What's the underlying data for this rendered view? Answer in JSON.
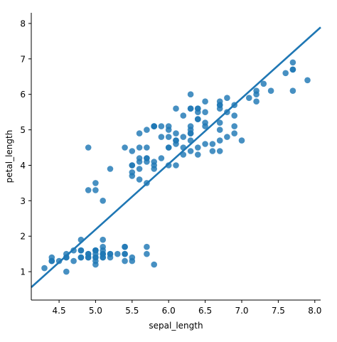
{
  "chart_data": {
    "type": "scatter",
    "title": "",
    "xlabel": "sepal_length",
    "ylabel": "petal_length",
    "xlim": [
      4.12,
      8.08
    ],
    "ylim": [
      0.2,
      8.3
    ],
    "xticks": [
      "4.5",
      "5.0",
      "5.5",
      "6.0",
      "6.5",
      "7.0",
      "7.5",
      "8.0"
    ],
    "yticks": [
      "1",
      "2",
      "3",
      "4",
      "5",
      "6",
      "7",
      "8"
    ],
    "grid": false,
    "legend": "none",
    "colors": {
      "points": "#1f77b4",
      "line": "#1f77b4"
    },
    "regression_line": {
      "x": [
        4.12,
        8.08
      ],
      "y": [
        0.56,
        7.89
      ]
    },
    "points": [
      {
        "x": 5.1,
        "y": 1.4
      },
      {
        "x": 4.9,
        "y": 1.4
      },
      {
        "x": 4.7,
        "y": 1.3
      },
      {
        "x": 4.6,
        "y": 1.5
      },
      {
        "x": 5.0,
        "y": 1.4
      },
      {
        "x": 5.4,
        "y": 1.7
      },
      {
        "x": 4.6,
        "y": 1.4
      },
      {
        "x": 5.0,
        "y": 1.5
      },
      {
        "x": 4.4,
        "y": 1.4
      },
      {
        "x": 4.9,
        "y": 1.5
      },
      {
        "x": 5.4,
        "y": 1.5
      },
      {
        "x": 4.8,
        "y": 1.6
      },
      {
        "x": 4.8,
        "y": 1.4
      },
      {
        "x": 4.3,
        "y": 1.1
      },
      {
        "x": 5.8,
        "y": 1.2
      },
      {
        "x": 5.7,
        "y": 1.5
      },
      {
        "x": 5.4,
        "y": 1.3
      },
      {
        "x": 5.1,
        "y": 1.4
      },
      {
        "x": 5.7,
        "y": 1.7
      },
      {
        "x": 5.1,
        "y": 1.5
      },
      {
        "x": 5.4,
        "y": 1.7
      },
      {
        "x": 5.1,
        "y": 1.5
      },
      {
        "x": 4.6,
        "y": 1.0
      },
      {
        "x": 5.1,
        "y": 1.7
      },
      {
        "x": 4.8,
        "y": 1.9
      },
      {
        "x": 5.0,
        "y": 1.6
      },
      {
        "x": 5.0,
        "y": 1.6
      },
      {
        "x": 5.2,
        "y": 1.5
      },
      {
        "x": 5.2,
        "y": 1.4
      },
      {
        "x": 4.7,
        "y": 1.6
      },
      {
        "x": 4.8,
        "y": 1.6
      },
      {
        "x": 5.4,
        "y": 1.5
      },
      {
        "x": 5.2,
        "y": 1.5
      },
      {
        "x": 5.5,
        "y": 1.4
      },
      {
        "x": 4.9,
        "y": 1.5
      },
      {
        "x": 5.0,
        "y": 1.2
      },
      {
        "x": 5.5,
        "y": 1.3
      },
      {
        "x": 4.9,
        "y": 1.4
      },
      {
        "x": 4.4,
        "y": 1.3
      },
      {
        "x": 5.1,
        "y": 1.5
      },
      {
        "x": 5.0,
        "y": 1.3
      },
      {
        "x": 4.5,
        "y": 1.3
      },
      {
        "x": 4.4,
        "y": 1.3
      },
      {
        "x": 5.0,
        "y": 1.6
      },
      {
        "x": 5.1,
        "y": 1.9
      },
      {
        "x": 4.8,
        "y": 1.4
      },
      {
        "x": 5.1,
        "y": 1.6
      },
      {
        "x": 4.6,
        "y": 1.4
      },
      {
        "x": 5.3,
        "y": 1.5
      },
      {
        "x": 5.0,
        "y": 1.4
      },
      {
        "x": 7.0,
        "y": 4.7
      },
      {
        "x": 6.4,
        "y": 4.5
      },
      {
        "x": 6.9,
        "y": 4.9
      },
      {
        "x": 5.5,
        "y": 4.0
      },
      {
        "x": 6.5,
        "y": 4.6
      },
      {
        "x": 5.7,
        "y": 4.5
      },
      {
        "x": 6.3,
        "y": 4.7
      },
      {
        "x": 4.9,
        "y": 3.3
      },
      {
        "x": 6.6,
        "y": 4.6
      },
      {
        "x": 5.2,
        "y": 3.9
      },
      {
        "x": 5.0,
        "y": 3.5
      },
      {
        "x": 5.9,
        "y": 4.2
      },
      {
        "x": 6.0,
        "y": 4.0
      },
      {
        "x": 6.1,
        "y": 4.7
      },
      {
        "x": 5.6,
        "y": 3.6
      },
      {
        "x": 6.7,
        "y": 4.4
      },
      {
        "x": 5.6,
        "y": 4.5
      },
      {
        "x": 5.8,
        "y": 4.1
      },
      {
        "x": 6.2,
        "y": 4.5
      },
      {
        "x": 5.6,
        "y": 3.9
      },
      {
        "x": 5.9,
        "y": 4.8
      },
      {
        "x": 6.1,
        "y": 4.0
      },
      {
        "x": 6.3,
        "y": 4.9
      },
      {
        "x": 6.1,
        "y": 4.7
      },
      {
        "x": 6.4,
        "y": 4.3
      },
      {
        "x": 6.6,
        "y": 4.4
      },
      {
        "x": 6.8,
        "y": 4.8
      },
      {
        "x": 6.7,
        "y": 5.0
      },
      {
        "x": 6.0,
        "y": 4.5
      },
      {
        "x": 5.7,
        "y": 3.5
      },
      {
        "x": 5.5,
        "y": 3.8
      },
      {
        "x": 5.5,
        "y": 3.7
      },
      {
        "x": 5.8,
        "y": 3.9
      },
      {
        "x": 6.0,
        "y": 5.1
      },
      {
        "x": 5.4,
        "y": 4.5
      },
      {
        "x": 6.0,
        "y": 4.5
      },
      {
        "x": 6.7,
        "y": 4.7
      },
      {
        "x": 6.3,
        "y": 4.4
      },
      {
        "x": 5.6,
        "y": 4.1
      },
      {
        "x": 5.5,
        "y": 4.0
      },
      {
        "x": 5.5,
        "y": 4.4
      },
      {
        "x": 6.1,
        "y": 4.6
      },
      {
        "x": 5.8,
        "y": 4.0
      },
      {
        "x": 5.0,
        "y": 3.3
      },
      {
        "x": 5.6,
        "y": 4.2
      },
      {
        "x": 5.7,
        "y": 4.2
      },
      {
        "x": 5.7,
        "y": 4.2
      },
      {
        "x": 6.2,
        "y": 4.3
      },
      {
        "x": 5.1,
        "y": 3.0
      },
      {
        "x": 5.7,
        "y": 4.1
      },
      {
        "x": 6.3,
        "y": 6.0
      },
      {
        "x": 5.8,
        "y": 5.1
      },
      {
        "x": 7.1,
        "y": 5.9
      },
      {
        "x": 6.3,
        "y": 5.6
      },
      {
        "x": 6.5,
        "y": 5.8
      },
      {
        "x": 7.6,
        "y": 6.6
      },
      {
        "x": 4.9,
        "y": 4.5
      },
      {
        "x": 7.3,
        "y": 6.3
      },
      {
        "x": 6.7,
        "y": 5.8
      },
      {
        "x": 7.2,
        "y": 6.1
      },
      {
        "x": 6.5,
        "y": 5.1
      },
      {
        "x": 6.4,
        "y": 5.3
      },
      {
        "x": 6.8,
        "y": 5.5
      },
      {
        "x": 5.7,
        "y": 5.0
      },
      {
        "x": 5.8,
        "y": 5.1
      },
      {
        "x": 6.4,
        "y": 5.3
      },
      {
        "x": 6.5,
        "y": 5.5
      },
      {
        "x": 7.7,
        "y": 6.7
      },
      {
        "x": 7.7,
        "y": 6.9
      },
      {
        "x": 6.0,
        "y": 5.0
      },
      {
        "x": 6.9,
        "y": 5.7
      },
      {
        "x": 5.6,
        "y": 4.9
      },
      {
        "x": 7.7,
        "y": 6.7
      },
      {
        "x": 6.3,
        "y": 4.9
      },
      {
        "x": 6.7,
        "y": 5.7
      },
      {
        "x": 7.2,
        "y": 6.0
      },
      {
        "x": 6.2,
        "y": 4.8
      },
      {
        "x": 6.1,
        "y": 4.9
      },
      {
        "x": 6.4,
        "y": 5.6
      },
      {
        "x": 7.2,
        "y": 5.8
      },
      {
        "x": 7.4,
        "y": 6.1
      },
      {
        "x": 7.9,
        "y": 6.4
      },
      {
        "x": 6.4,
        "y": 5.6
      },
      {
        "x": 6.3,
        "y": 5.1
      },
      {
        "x": 6.1,
        "y": 5.6
      },
      {
        "x": 7.7,
        "y": 6.1
      },
      {
        "x": 6.3,
        "y": 5.6
      },
      {
        "x": 6.4,
        "y": 5.5
      },
      {
        "x": 6.0,
        "y": 4.8
      },
      {
        "x": 6.9,
        "y": 5.4
      },
      {
        "x": 6.7,
        "y": 5.6
      },
      {
        "x": 6.9,
        "y": 5.1
      },
      {
        "x": 5.8,
        "y": 5.1
      },
      {
        "x": 6.8,
        "y": 5.9
      },
      {
        "x": 6.7,
        "y": 5.7
      },
      {
        "x": 6.7,
        "y": 5.2
      },
      {
        "x": 6.3,
        "y": 5.0
      },
      {
        "x": 6.5,
        "y": 5.2
      },
      {
        "x": 6.2,
        "y": 5.4
      },
      {
        "x": 5.9,
        "y": 5.1
      }
    ]
  }
}
